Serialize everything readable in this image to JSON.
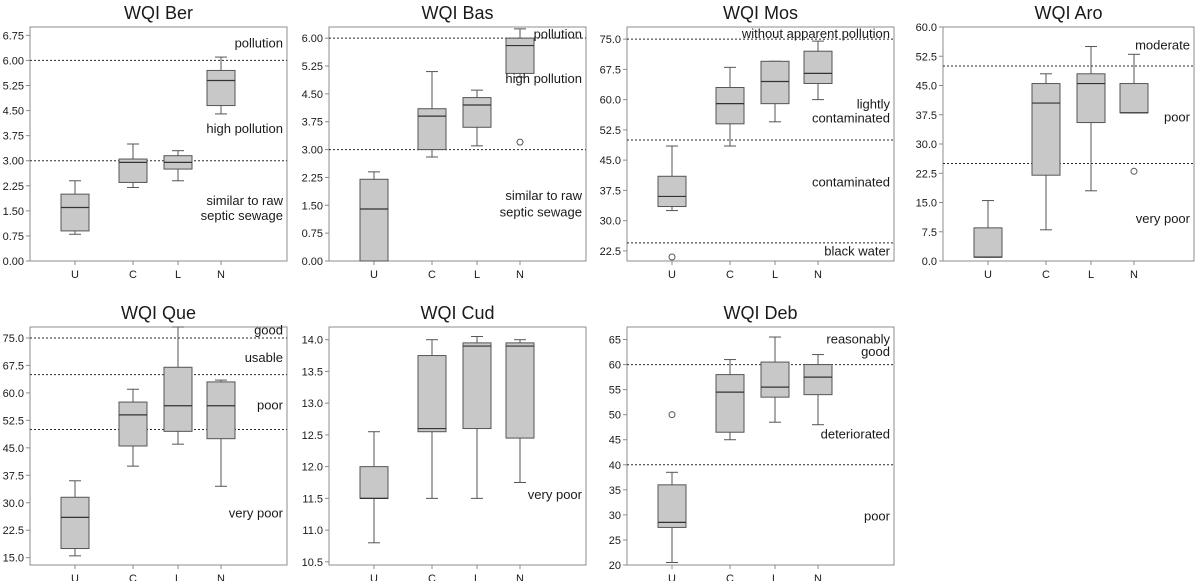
{
  "chart_data": [
    {
      "type": "boxplot",
      "title": "WQI Ber",
      "categories": [
        "U",
        "C",
        "L",
        "N"
      ],
      "ylim": [
        0,
        7.0
      ],
      "yticks": [
        "0.00",
        "0.75",
        "1.50",
        "2.25",
        "3.00",
        "3.75",
        "4.50",
        "5.25",
        "6.00",
        "6.75"
      ],
      "boxes": [
        {
          "min": 0.8,
          "q1": 0.9,
          "median": 1.6,
          "q3": 2.0,
          "max": 2.4,
          "outliers": []
        },
        {
          "min": 2.2,
          "q1": 2.35,
          "median": 2.95,
          "q3": 3.05,
          "max": 3.5,
          "outliers": []
        },
        {
          "min": 2.4,
          "q1": 2.75,
          "median": 2.95,
          "q3": 3.15,
          "max": 3.3,
          "outliers": []
        },
        {
          "min": 4.4,
          "q1": 4.65,
          "median": 5.4,
          "q3": 5.7,
          "max": 6.1,
          "outliers": []
        }
      ],
      "reference_lines": [
        6.0,
        3.0
      ],
      "zone_labels": [
        {
          "text": "pollution",
          "y": 6.5
        },
        {
          "text": "high pollution",
          "y": 3.95
        },
        {
          "text": "similar to raw",
          "y": 1.8
        },
        {
          "text": "septic sewage",
          "y": 1.35
        }
      ]
    },
    {
      "type": "boxplot",
      "title": "WQI Bas",
      "categories": [
        "U",
        "C",
        "L",
        "N"
      ],
      "ylim": [
        0,
        6.3
      ],
      "yticks": [
        "0.00",
        "0.75",
        "1.50",
        "2.25",
        "3.00",
        "3.75",
        "4.50",
        "5.25",
        "6.00"
      ],
      "boxes": [
        {
          "min": 0.0,
          "q1": 0.0,
          "median": 1.4,
          "q3": 2.2,
          "max": 2.4,
          "outliers": []
        },
        {
          "min": 2.8,
          "q1": 3.0,
          "median": 3.9,
          "q3": 4.1,
          "max": 5.1,
          "outliers": []
        },
        {
          "min": 3.1,
          "q1": 3.6,
          "median": 4.2,
          "q3": 4.4,
          "max": 4.6,
          "outliers": []
        },
        {
          "min": 4.95,
          "q1": 5.05,
          "median": 5.8,
          "q3": 6.0,
          "max": 6.25,
          "outliers": [
            3.2
          ]
        }
      ],
      "reference_lines": [
        6.0,
        3.0
      ],
      "zone_labels": [
        {
          "text": "pollution",
          "y": 6.1
        },
        {
          "text": "high pollution",
          "y": 4.9
        },
        {
          "text": "similar to raw",
          "y": 1.75
        },
        {
          "text": "septic sewage",
          "y": 1.3
        }
      ]
    },
    {
      "type": "boxplot",
      "title": "WQI Mos",
      "categories": [
        "U",
        "C",
        "L",
        "N"
      ],
      "ylim": [
        20.0,
        78.0
      ],
      "yticks": [
        "22.5",
        "30.0",
        "37.5",
        "45.0",
        "52.5",
        "60.0",
        "67.5",
        "75.0"
      ],
      "boxes": [
        {
          "min": 32.5,
          "q1": 33.5,
          "median": 36.0,
          "q3": 41.0,
          "max": 48.5,
          "outliers": [
            21.0
          ]
        },
        {
          "min": 48.5,
          "q1": 54.0,
          "median": 59.0,
          "q3": 63.0,
          "max": 68.0,
          "outliers": []
        },
        {
          "min": 54.5,
          "q1": 59.0,
          "median": 64.5,
          "q3": 69.5,
          "max": 69.5,
          "outliers": []
        },
        {
          "min": 60.0,
          "q1": 64.0,
          "median": 66.5,
          "q3": 72.0,
          "max": 74.5,
          "outliers": []
        }
      ],
      "reference_lines": [
        75.0,
        50.0,
        24.5
      ],
      "zone_labels": [
        {
          "text": "without apparent pollution",
          "y": 76.3
        },
        {
          "text": "lightly",
          "y": 58.8
        },
        {
          "text": "contaminated",
          "y": 55.3
        },
        {
          "text": "contaminated",
          "y": 39.5
        },
        {
          "text": "black water",
          "y": 22.4
        }
      ]
    },
    {
      "type": "boxplot",
      "title": "WQI Aro",
      "categories": [
        "U",
        "C",
        "L",
        "N"
      ],
      "ylim": [
        0,
        60.0
      ],
      "yticks": [
        "0.0",
        "7.5",
        "15.0",
        "22.5",
        "30.0",
        "37.5",
        "45.0",
        "52.5",
        "60.0"
      ],
      "boxes": [
        {
          "min": 1.0,
          "q1": 1.0,
          "median": 1.0,
          "q3": 8.5,
          "max": 15.5,
          "outliers": []
        },
        {
          "min": 8.0,
          "q1": 22.0,
          "median": 40.5,
          "q3": 45.5,
          "max": 48.0,
          "outliers": []
        },
        {
          "min": 18.0,
          "q1": 35.5,
          "median": 45.5,
          "q3": 48.0,
          "max": 55.0,
          "outliers": []
        },
        {
          "min": 38.0,
          "q1": 38.0,
          "median": 38.0,
          "q3": 45.5,
          "max": 53.0,
          "outliers": [
            23.0
          ]
        }
      ],
      "reference_lines": [
        50.0,
        25.0
      ],
      "zone_labels": [
        {
          "text": "moderate",
          "y": 55.3
        },
        {
          "text": "poor",
          "y": 36.8
        },
        {
          "text": "very poor",
          "y": 10.8
        }
      ]
    },
    {
      "type": "boxplot",
      "title": "WQI Que",
      "categories": [
        "U",
        "C",
        "L",
        "N"
      ],
      "ylim": [
        13.0,
        78.0
      ],
      "yticks": [
        "15.0",
        "22.5",
        "30.0",
        "37.5",
        "45.0",
        "52.5",
        "60.0",
        "67.5",
        "75.0"
      ],
      "boxes": [
        {
          "min": 15.5,
          "q1": 17.5,
          "median": 26.0,
          "q3": 31.5,
          "max": 36.0,
          "outliers": []
        },
        {
          "min": 40.0,
          "q1": 45.5,
          "median": 54.0,
          "q3": 57.5,
          "max": 61.0,
          "outliers": []
        },
        {
          "min": 46.0,
          "q1": 49.5,
          "median": 56.5,
          "q3": 67.0,
          "max": 78.0,
          "outliers": []
        },
        {
          "min": 34.5,
          "q1": 47.5,
          "median": 56.5,
          "q3": 63.0,
          "max": 63.5,
          "outliers": []
        }
      ],
      "reference_lines": [
        75.0,
        65.0,
        50.0
      ],
      "zone_labels": [
        {
          "text": "good",
          "y": 77.0
        },
        {
          "text": "usable",
          "y": 69.5
        },
        {
          "text": "poor",
          "y": 56.5
        },
        {
          "text": "very poor",
          "y": 27.0
        }
      ]
    },
    {
      "type": "boxplot",
      "title": "WQI Cud",
      "categories": [
        "U",
        "C",
        "L",
        "N"
      ],
      "ylim": [
        10.45,
        14.2
      ],
      "yticks": [
        "10.5",
        "11.0",
        "11.5",
        "12.0",
        "12.5",
        "13.0",
        "13.5",
        "14.0"
      ],
      "boxes": [
        {
          "min": 10.8,
          "q1": 11.5,
          "median": 11.5,
          "q3": 12.0,
          "max": 12.55,
          "outliers": []
        },
        {
          "min": 11.5,
          "q1": 12.55,
          "median": 12.6,
          "q3": 13.75,
          "max": 14.0,
          "outliers": []
        },
        {
          "min": 11.5,
          "q1": 12.6,
          "median": 13.9,
          "q3": 13.95,
          "max": 14.05,
          "outliers": []
        },
        {
          "min": 11.75,
          "q1": 12.45,
          "median": 13.9,
          "q3": 13.95,
          "max": 14.0,
          "outliers": []
        }
      ],
      "reference_lines": [],
      "zone_labels": [
        {
          "text": "very poor",
          "y": 11.55
        }
      ]
    },
    {
      "type": "boxplot",
      "title": "WQI Deb",
      "categories": [
        "U",
        "C",
        "L",
        "N"
      ],
      "ylim": [
        20.0,
        67.5
      ],
      "yticks": [
        "20",
        "25",
        "30",
        "35",
        "40",
        "45",
        "50",
        "55",
        "60",
        "65"
      ],
      "boxes": [
        {
          "min": 20.5,
          "q1": 27.5,
          "median": 28.5,
          "q3": 36.0,
          "max": 38.5,
          "outliers": [
            50.0
          ]
        },
        {
          "min": 45.0,
          "q1": 46.5,
          "median": 54.5,
          "q3": 58.0,
          "max": 61.0,
          "outliers": []
        },
        {
          "min": 48.5,
          "q1": 53.5,
          "median": 55.5,
          "q3": 60.5,
          "max": 65.5,
          "outliers": []
        },
        {
          "min": 48.0,
          "q1": 54.0,
          "median": 57.5,
          "q3": 60.0,
          "max": 62.0,
          "outliers": []
        }
      ],
      "reference_lines": [
        60.0,
        40.0
      ],
      "zone_labels": [
        {
          "text": "reasonably",
          "y": 65.0
        },
        {
          "text": "good",
          "y": 62.5
        },
        {
          "text": "deteriorated",
          "y": 46.0
        },
        {
          "text": "poor",
          "y": 29.7
        }
      ]
    }
  ]
}
